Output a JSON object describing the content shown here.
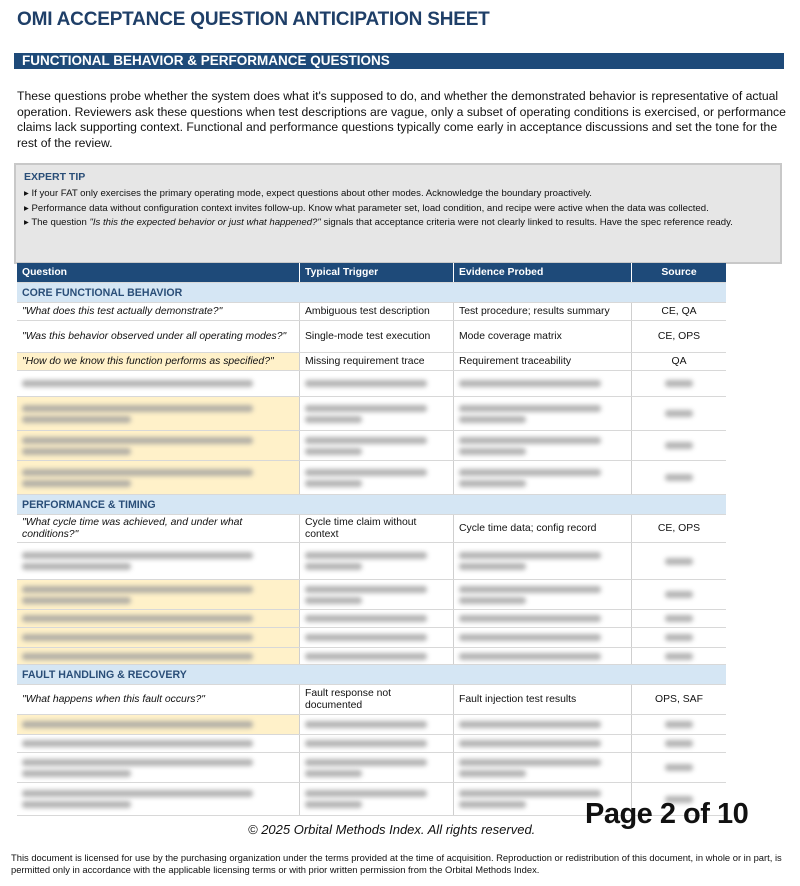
{
  "title": "OMI ACCEPTANCE QUESTION ANTICIPATION SHEET",
  "section_title": "FUNCTIONAL BEHAVIOR & PERFORMANCE QUESTIONS",
  "intro": "These questions probe whether the system does what it's supposed to do, and whether the demonstrated behavior is representative of actual operation. Reviewers ask these questions when test descriptions are vague, only a subset of operating conditions is exercised, or performance claims lack supporting context. Functional and performance questions typically come early in acceptance discussions and set the tone for the rest of the review.",
  "expert_tip": {
    "heading": "EXPERT TIP",
    "items": [
      {
        "text": "If your FAT only exercises the primary operating mode, expect questions about other modes. Acknowledge the boundary proactively."
      },
      {
        "text": "Performance data without configuration context invites follow-up. Know what parameter set, load condition, and recipe were active when the data was collected."
      },
      {
        "pre": "The question ",
        "quote": "\"Is this the expected behavior or just what happened?\"",
        "post": " signals that acceptance criteria were not clearly linked to results. Have the spec reference ready."
      }
    ]
  },
  "table": {
    "headers": [
      "Question",
      "Typical Trigger",
      "Evidence Probed",
      "Source"
    ],
    "groups": [
      {
        "label": "CORE FUNCTIONAL BEHAVIOR",
        "rows": [
          {
            "q": "\"What does this test actually demonstrate?\"",
            "trigger": "Ambiguous test description",
            "evidence": "Test procedure; results summary",
            "source": "CE, QA"
          },
          {
            "q": "\"Was this behavior observed under all operating modes?\"",
            "trigger": "Single-mode test execution",
            "evidence": "Mode coverage matrix",
            "source": "CE, OPS"
          },
          {
            "q": "\"How do we know this function performs as specified?\"",
            "trigger": "Missing requirement trace",
            "evidence": "Requirement traceability",
            "source": "QA",
            "highlight": true
          }
        ]
      },
      {
        "label": "PERFORMANCE & TIMING",
        "rows": [
          {
            "q": "\"What cycle time was achieved, and under what conditions?\"",
            "trigger": "Cycle time claim without context",
            "evidence": "Cycle time data; config record",
            "source": "CE, OPS"
          }
        ]
      },
      {
        "label": "FAULT HANDLING & RECOVERY",
        "rows": [
          {
            "q": "\"What happens when this fault occurs?\"",
            "trigger": "Fault response not documented",
            "evidence": "Fault injection test results",
            "source": "OPS, SAF"
          }
        ]
      }
    ]
  },
  "colors": {
    "header": "#1e4a79",
    "group": "#d5e6f4",
    "highlight": "#fff1c9"
  },
  "footer": {
    "copyright": "© 2025 Orbital Methods Index. All rights reserved.",
    "page": "Page 2 of 10",
    "license": "This document is licensed for use by the purchasing organization under the terms provided at the time of acquisition. Reproduction or redistribution of this document, in whole or in part, is permitted only in accordance with the applicable licensing terms or with prior written permission from the Orbital Methods Index."
  }
}
